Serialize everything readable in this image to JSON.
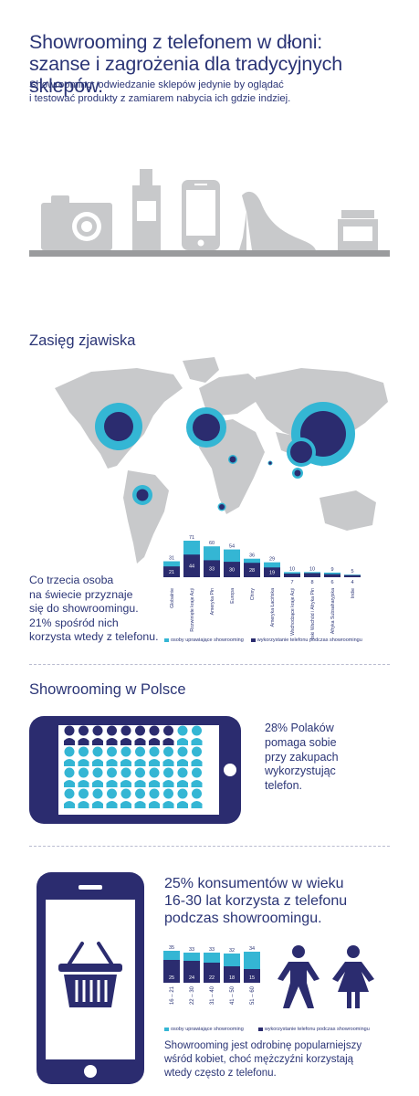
{
  "header": {
    "title_line1": "Showrooming z telefonem w dłoni:",
    "title_line2": "szanse i zagrożenia dla tradycyjnych sklepów.",
    "subtitle_line1": "Showrooming: odwiedzanie sklepów jedynie by oglądać",
    "subtitle_line2": "i testować produkty z zamiarem nabycia ich gdzie indziej."
  },
  "illustration": {
    "icons": [
      "camera-icon",
      "perfume-bottle-icon",
      "smartphone-icon",
      "high-heel-icon",
      "cream-jar-icon"
    ]
  },
  "reach": {
    "title": "Zasięg zjawiska",
    "caption_lines": [
      "Co trzecia osoba",
      "na świecie  przyznaje",
      "się do showroomingu.",
      "21% spośród nich",
      "korzysta wtedy z telefonu."
    ]
  },
  "poland": {
    "title": "Showrooming w Polsce",
    "text_lines": [
      "28% Polaków",
      "pomaga sobie",
      "przy zakupach",
      "wykorzystując",
      "telefon."
    ],
    "grid_rows": 4,
    "grid_cols": 10,
    "dark_count": 8,
    "dark_rows": 1
  },
  "age": {
    "headline_lines": [
      "25% konsumentów w wieku",
      "16-30 lat korzysta z telefonu",
      "podczas showroomingu."
    ],
    "bottom_lines": [
      "Showrooming jest odrobinę popularniejszy",
      "wśród kobiet, choć mężczyźni korzystają",
      "wtedy często z telefonu."
    ]
  },
  "colors": {
    "light": "#34b6d4",
    "dark": "#2b2c6f",
    "grey": "#c8c9cb",
    "grey_dark": "#9a9b9d"
  },
  "chart_data": [
    {
      "type": "bar",
      "categories": [
        "Globalnie",
        "Rozwinięte kraje Azji",
        "Ameryka Płn",
        "Europa",
        "Chiny",
        "Ameryka Łacińska",
        "Wschodzące kraje Azji",
        "Bliski Wschód i Afryka Płn",
        "Afryka Subsaharyjska",
        "Indie"
      ],
      "series": [
        {
          "name": "osoby uprawiające showrooming",
          "values": [
            31,
            71,
            60,
            54,
            36,
            29,
            10,
            10,
            9,
            5
          ]
        },
        {
          "name": "wykorzystanie telefonu podczas showroomingu",
          "values": [
            21,
            44,
            33,
            30,
            28,
            19,
            7,
            8,
            6,
            4
          ]
        }
      ],
      "legend": [
        "osoby uprawiające showrooming",
        "wykorzystanie telefonu podczas showroomingu"
      ],
      "legend_position": "bottom",
      "ylim": [
        0,
        71
      ]
    },
    {
      "type": "bar",
      "categories": [
        "16 – 21",
        "22 – 30",
        "31 – 40",
        "41 – 50",
        "51 – 60"
      ],
      "series": [
        {
          "name": "osoby uprawiające showrooming",
          "values": [
            35,
            33,
            33,
            32,
            34
          ]
        },
        {
          "name": "wykorzystanie telefonu podczas showroomingu",
          "values": [
            25,
            24,
            22,
            18,
            15
          ]
        }
      ],
      "legend": [
        "osoby uprawiające showrooming",
        "wykorzystanie telefonu podczas showroomingu"
      ],
      "legend_position": "bottom",
      "ylim": [
        0,
        35
      ]
    }
  ]
}
